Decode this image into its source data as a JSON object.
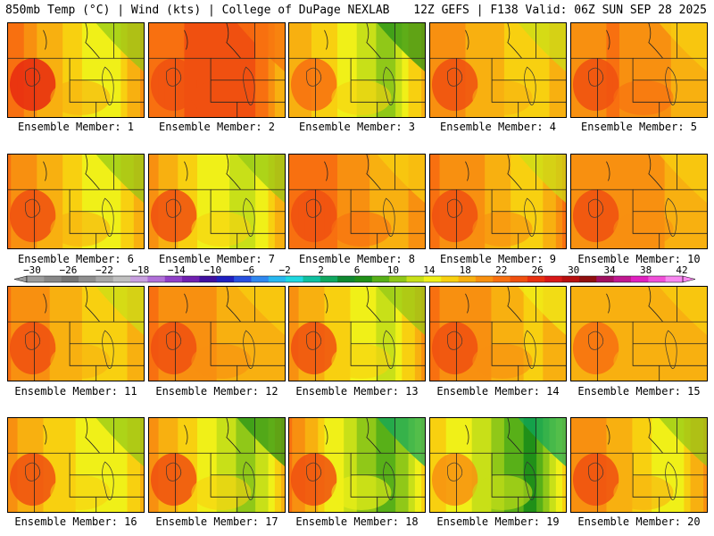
{
  "header": {
    "title": "850mb Temp (°C) | Wind (kts) | College of DuPage NEXLAB",
    "run_info": "12Z GEFS | F138 Valid: 06Z SUN SEP 28 2025"
  },
  "colorbar": {
    "labels": [
      "−30",
      "−26",
      "−22",
      "−18",
      "−14",
      "−10",
      "−6",
      "−2",
      "2",
      "6",
      "10",
      "14",
      "18",
      "22",
      "26",
      "30",
      "34",
      "38",
      "42"
    ],
    "colors": [
      "#9c9c9c",
      "#888888",
      "#767676",
      "#8f8f8f",
      "#a8a8a8",
      "#c0c0c0",
      "#c8a0e0",
      "#b070d8",
      "#9040c8",
      "#7020b0",
      "#4010a0",
      "#2020c0",
      "#2850e0",
      "#3088f0",
      "#28b8f0",
      "#20d8e0",
      "#10c0a0",
      "#10a860",
      "#108830",
      "#209018",
      "#58b018",
      "#90c818",
      "#c8e018",
      "#f0f018",
      "#f8d010",
      "#f8b010",
      "#f89010",
      "#f87010",
      "#f05010",
      "#e83010",
      "#d81818",
      "#b81010",
      "#901010",
      "#a01060",
      "#c01890",
      "#e020c0",
      "#f050d8",
      "#f888f0"
    ]
  },
  "members": [
    {
      "label": "Ensemble Member: 1",
      "profile": [
        0.15,
        0.35,
        0.55,
        0.25
      ]
    },
    {
      "label": "Ensemble Member: 2",
      "profile": [
        0.2,
        0.1,
        0.1,
        0.35
      ]
    },
    {
      "label": "Ensemble Member: 3",
      "profile": [
        0.3,
        0.45,
        0.7,
        0.3
      ]
    },
    {
      "label": "Ensemble Member: 4",
      "profile": [
        0.25,
        0.3,
        0.45,
        0.3
      ]
    },
    {
      "label": "Ensemble Member: 5",
      "profile": [
        0.25,
        0.2,
        0.3,
        0.3
      ]
    },
    {
      "label": "Ensemble Member: 6",
      "profile": [
        0.2,
        0.35,
        0.55,
        0.3
      ]
    },
    {
      "label": "Ensemble Member: 7",
      "profile": [
        0.25,
        0.45,
        0.6,
        0.3
      ]
    },
    {
      "label": "Ensemble Member: 8",
      "profile": [
        0.2,
        0.2,
        0.35,
        0.25
      ]
    },
    {
      "label": "Ensemble Member: 9",
      "profile": [
        0.2,
        0.25,
        0.45,
        0.2
      ]
    },
    {
      "label": "Ensemble Member: 10",
      "profile": [
        0.25,
        0.25,
        0.3,
        0.3
      ]
    },
    {
      "label": "Ensemble Member: 11",
      "profile": [
        0.2,
        0.3,
        0.45,
        0.3
      ]
    },
    {
      "label": "Ensemble Member: 12",
      "profile": [
        0.2,
        0.25,
        0.35,
        0.3
      ]
    },
    {
      "label": "Ensemble Member: 13",
      "profile": [
        0.25,
        0.4,
        0.6,
        0.25
      ]
    },
    {
      "label": "Ensemble Member: 14",
      "profile": [
        0.2,
        0.25,
        0.4,
        0.3
      ]
    },
    {
      "label": "Ensemble Member: 15",
      "profile": [
        0.3,
        0.3,
        0.3,
        0.3
      ]
    },
    {
      "label": "Ensemble Member: 16",
      "profile": [
        0.25,
        0.4,
        0.55,
        0.35
      ]
    },
    {
      "label": "Ensemble Member: 17",
      "profile": [
        0.25,
        0.45,
        0.7,
        0.35
      ]
    },
    {
      "label": "Ensemble Member: 18",
      "profile": [
        0.2,
        0.5,
        0.8,
        0.4
      ]
    },
    {
      "label": "Ensemble Member: 19",
      "profile": [
        0.4,
        0.55,
        0.85,
        0.45
      ]
    },
    {
      "label": "Ensemble Member: 20",
      "profile": [
        0.25,
        0.3,
        0.55,
        0.25
      ]
    }
  ]
}
